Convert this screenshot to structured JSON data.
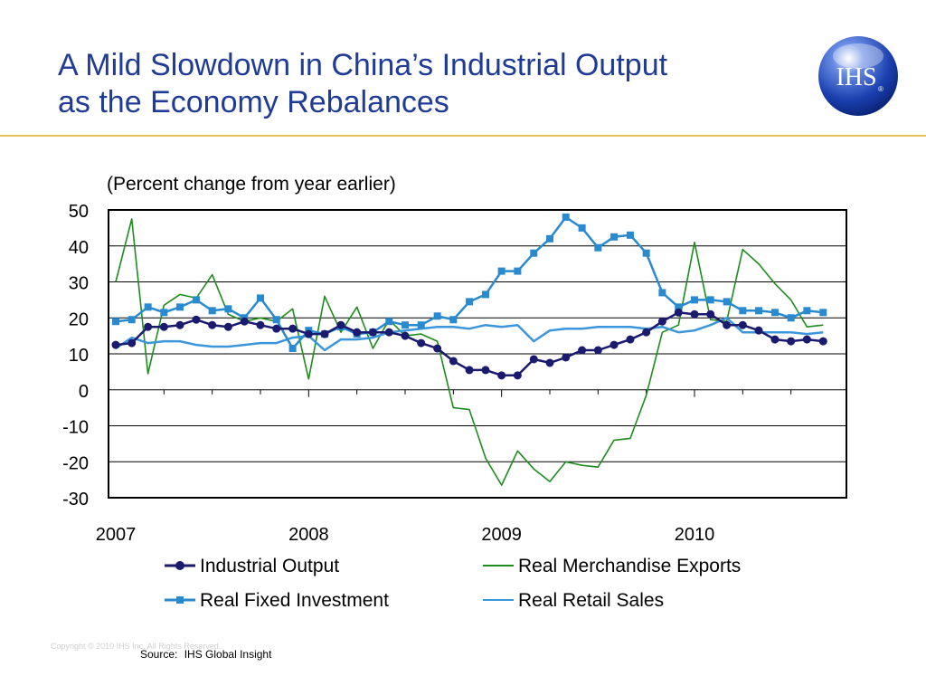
{
  "slide": {
    "title_lines": [
      "A Mild Slowdown in China’s Industrial Output",
      "as the Economy Rebalances"
    ],
    "copyright": "Copyright © 2010 IHS Inc. All Rights Reserved.",
    "source_label": "Source:",
    "source_text": "IHS Global Insight",
    "title_color": "#1f3b96",
    "rule_color": "#e6c25a"
  },
  "logo": {
    "text": "IHS",
    "mark": "®",
    "colors": [
      "#ffffff",
      "#6b8fe6",
      "#1a3fae",
      "#0a2378"
    ]
  },
  "chart_data": {
    "type": "line",
    "subtitle": "(Percent change from year earlier)",
    "ylim": [
      -30,
      50
    ],
    "yticks": [
      "50",
      "40",
      "30",
      "20",
      "10",
      "0",
      "-10",
      "-20",
      "-30"
    ],
    "x_start": 2007.0,
    "x_end": 2010.75,
    "year_labels": [
      "2007",
      "2008",
      "2009",
      "2010"
    ],
    "grid": true,
    "legend_position": "bottom",
    "series": [
      {
        "name": "Real Merchandise Exports",
        "color": "#1e8c1e",
        "marker": "none",
        "width": 1.6,
        "x": [
          2007.0,
          2007.083,
          2007.167,
          2007.25,
          2007.333,
          2007.417,
          2007.5,
          2007.583,
          2007.667,
          2007.75,
          2007.833,
          2007.917,
          2008.0,
          2008.083,
          2008.167,
          2008.25,
          2008.333,
          2008.417,
          2008.5,
          2008.583,
          2008.667,
          2008.75,
          2008.833,
          2008.917,
          2009.0,
          2009.083,
          2009.167,
          2009.25,
          2009.333,
          2009.417,
          2009.5,
          2009.583,
          2009.667,
          2009.75,
          2009.833,
          2009.917,
          2010.0,
          2010.083,
          2010.167,
          2010.25,
          2010.333,
          2010.417,
          2010.5,
          2010.583,
          2010.667
        ],
        "values": [
          30,
          47.5,
          4.5,
          23.5,
          26.5,
          25.5,
          32,
          21,
          19,
          20,
          19,
          22.5,
          3,
          26,
          16,
          23,
          11.5,
          19.5,
          15,
          15.5,
          13.5,
          -5,
          -5.5,
          -19,
          -26.5,
          -17,
          -22,
          -25.5,
          -20,
          -21,
          -21.5,
          -14,
          -13.5,
          -1.5,
          16,
          18,
          41,
          19.5,
          19,
          39,
          35,
          29.5,
          25,
          17.5,
          18
        ]
      },
      {
        "name": "Real Retail Sales",
        "color": "#3c96dc",
        "marker": "none",
        "width": 2.5,
        "x": [
          2007.0,
          2007.083,
          2007.167,
          2007.25,
          2007.333,
          2007.417,
          2007.5,
          2007.583,
          2007.667,
          2007.75,
          2007.833,
          2007.917,
          2008.0,
          2008.083,
          2008.167,
          2008.25,
          2008.333,
          2008.417,
          2008.5,
          2008.583,
          2008.667,
          2008.75,
          2008.833,
          2008.917,
          2009.0,
          2009.083,
          2009.167,
          2009.25,
          2009.333,
          2009.417,
          2009.5,
          2009.583,
          2009.667,
          2009.75,
          2009.833,
          2009.917,
          2010.0,
          2010.083,
          2010.167,
          2010.25,
          2010.333,
          2010.417,
          2010.5,
          2010.583,
          2010.667
        ],
        "values": [
          11.5,
          14.5,
          13,
          13.5,
          13.5,
          12.5,
          12,
          12,
          12.5,
          13,
          13,
          14.5,
          15,
          11,
          14,
          14,
          14.5,
          16,
          16.5,
          17,
          17.5,
          17.5,
          17,
          18,
          17.5,
          18,
          13.5,
          16.5,
          17,
          17,
          17.5,
          17.5,
          17.5,
          17,
          17.5,
          16,
          16.5,
          18,
          20,
          16,
          16,
          16,
          16,
          15.5,
          16
        ]
      },
      {
        "name": "Real Fixed Investment",
        "color": "#2a8ad0",
        "marker": "square",
        "width": 2.5,
        "x": [
          2007.0,
          2007.083,
          2007.167,
          2007.25,
          2007.333,
          2007.417,
          2007.5,
          2007.583,
          2007.667,
          2007.75,
          2007.833,
          2007.917,
          2008.0,
          2008.083,
          2008.167,
          2008.25,
          2008.333,
          2008.417,
          2008.5,
          2008.583,
          2008.667,
          2008.75,
          2008.833,
          2008.917,
          2009.0,
          2009.083,
          2009.167,
          2009.25,
          2009.333,
          2009.417,
          2009.5,
          2009.583,
          2009.667,
          2009.75,
          2009.833,
          2009.917,
          2010.0,
          2010.083,
          2010.167,
          2010.25,
          2010.333,
          2010.417,
          2010.5,
          2010.583,
          2010.667
        ],
        "values": [
          19,
          19.5,
          23,
          21.5,
          23,
          25,
          22,
          22.5,
          20,
          25.5,
          19.5,
          11.5,
          16.5,
          15.5,
          17.5,
          15.5,
          16,
          19,
          18,
          18,
          20.5,
          19.5,
          24.5,
          26.5,
          33,
          33,
          38,
          42,
          48,
          45,
          39.5,
          42.5,
          43,
          38,
          27,
          23,
          25,
          25,
          24.5,
          22,
          22,
          21.5,
          20,
          22,
          21.5
        ]
      },
      {
        "name": "Industrial Output",
        "color": "#1a1a6e",
        "marker": "circle",
        "width": 2.5,
        "x": [
          2007.0,
          2007.083,
          2007.167,
          2007.25,
          2007.333,
          2007.417,
          2007.5,
          2007.583,
          2007.667,
          2007.75,
          2007.833,
          2007.917,
          2008.0,
          2008.083,
          2008.167,
          2008.25,
          2008.333,
          2008.417,
          2008.5,
          2008.583,
          2008.667,
          2008.75,
          2008.833,
          2008.917,
          2009.0,
          2009.083,
          2009.167,
          2009.25,
          2009.333,
          2009.417,
          2009.5,
          2009.583,
          2009.667,
          2009.75,
          2009.833,
          2009.917,
          2010.0,
          2010.083,
          2010.167,
          2010.25,
          2010.333,
          2010.417,
          2010.5,
          2010.583,
          2010.667
        ],
        "values": [
          12.5,
          13,
          17.5,
          17.5,
          18,
          19.5,
          18,
          17.5,
          19,
          18,
          17,
          17,
          15.5,
          15.5,
          18,
          16,
          16,
          16,
          15,
          13,
          11.5,
          8,
          5.5,
          5.5,
          4,
          4,
          8.5,
          7.5,
          9,
          11,
          11,
          12.5,
          14,
          16,
          19,
          21.5,
          21,
          21,
          18,
          18,
          16.5,
          14,
          13.5,
          14,
          13.5
        ]
      }
    ],
    "legend": [
      {
        "name": "Industrial Output",
        "color": "#1a1a6e",
        "marker": "circle"
      },
      {
        "name": "Real Merchandise Exports",
        "color": "#1e8c1e",
        "marker": "none"
      },
      {
        "name": "Real Fixed Investment",
        "color": "#2a8ad0",
        "marker": "square"
      },
      {
        "name": "Real Retail Sales",
        "color": "#3c96dc",
        "marker": "none"
      }
    ]
  }
}
